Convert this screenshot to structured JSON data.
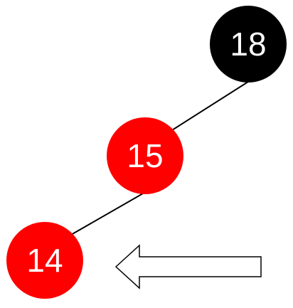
{
  "tree": {
    "nodes": [
      {
        "id": "n18",
        "label": "18",
        "color": "black",
        "fill": "#000000"
      },
      {
        "id": "n15",
        "label": "15",
        "color": "red",
        "fill": "#ff0000"
      },
      {
        "id": "n14",
        "label": "14",
        "color": "red",
        "fill": "#ff0000"
      }
    ],
    "edges": [
      {
        "from": "18",
        "to": "15"
      },
      {
        "from": "15",
        "to": "14"
      }
    ]
  },
  "pointer": {
    "icon": "left-arrow-icon",
    "target": "14"
  },
  "colors": {
    "black_node": "#000000",
    "red_node": "#ff0000",
    "label": "#ffffff",
    "edge": "#000000",
    "arrow_fill": "#ffffff",
    "arrow_stroke": "#000000"
  }
}
